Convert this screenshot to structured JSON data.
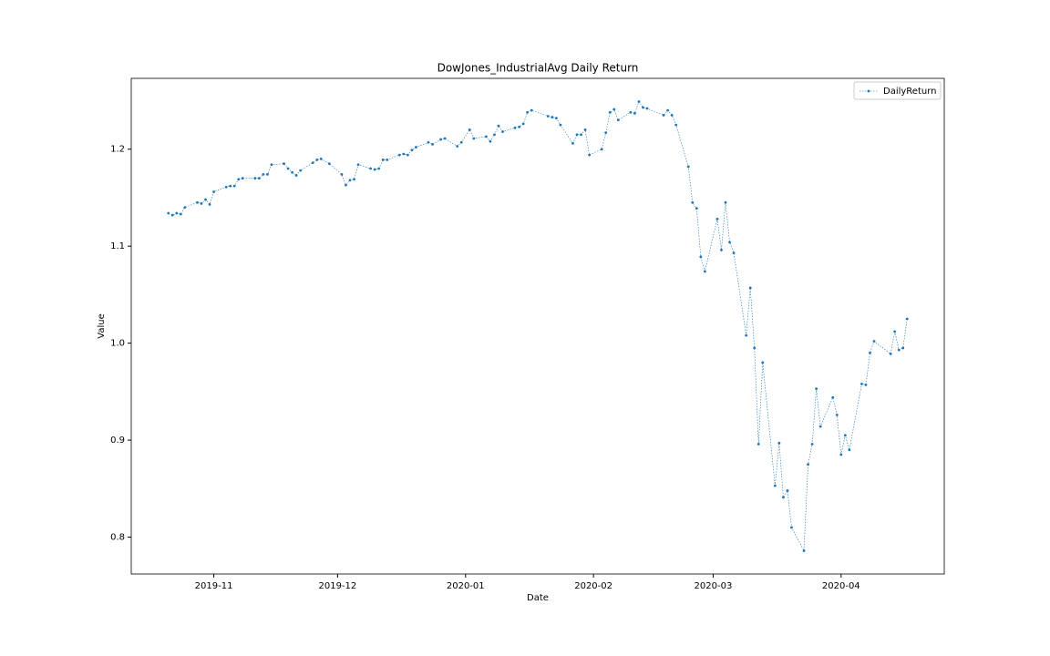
{
  "chart_data": {
    "type": "line",
    "title": "DowJones_IndustrialAvg Daily Return",
    "x_label": "Date",
    "y_label": "Value",
    "x": [
      "2019-10-21",
      "2019-10-22",
      "2019-10-23",
      "2019-10-24",
      "2019-10-25",
      "2019-10-28",
      "2019-10-29",
      "2019-10-30",
      "2019-10-31",
      "2019-11-01",
      "2019-11-04",
      "2019-11-05",
      "2019-11-06",
      "2019-11-07",
      "2019-11-08",
      "2019-11-11",
      "2019-11-12",
      "2019-11-13",
      "2019-11-14",
      "2019-11-15",
      "2019-11-18",
      "2019-11-19",
      "2019-11-20",
      "2019-11-21",
      "2019-11-22",
      "2019-11-25",
      "2019-11-26",
      "2019-11-27",
      "2019-11-29",
      "2019-12-02",
      "2019-12-03",
      "2019-12-04",
      "2019-12-05",
      "2019-12-06",
      "2019-12-09",
      "2019-12-10",
      "2019-12-11",
      "2019-12-12",
      "2019-12-13",
      "2019-12-16",
      "2019-12-17",
      "2019-12-18",
      "2019-12-19",
      "2019-12-20",
      "2019-12-23",
      "2019-12-24",
      "2019-12-26",
      "2019-12-27",
      "2019-12-30",
      "2019-12-31",
      "2020-01-02",
      "2020-01-03",
      "2020-01-06",
      "2020-01-07",
      "2020-01-08",
      "2020-01-09",
      "2020-01-10",
      "2020-01-13",
      "2020-01-14",
      "2020-01-15",
      "2020-01-16",
      "2020-01-17",
      "2020-01-21",
      "2020-01-22",
      "2020-01-23",
      "2020-01-24",
      "2020-01-27",
      "2020-01-28",
      "2020-01-29",
      "2020-01-30",
      "2020-01-31",
      "2020-02-03",
      "2020-02-04",
      "2020-02-05",
      "2020-02-06",
      "2020-02-07",
      "2020-02-10",
      "2020-02-11",
      "2020-02-12",
      "2020-02-13",
      "2020-02-14",
      "2020-02-18",
      "2020-02-19",
      "2020-02-20",
      "2020-02-21",
      "2020-02-24",
      "2020-02-25",
      "2020-02-26",
      "2020-02-27",
      "2020-02-28",
      "2020-03-02",
      "2020-03-03",
      "2020-03-04",
      "2020-03-05",
      "2020-03-06",
      "2020-03-09",
      "2020-03-10",
      "2020-03-11",
      "2020-03-12",
      "2020-03-13",
      "2020-03-16",
      "2020-03-17",
      "2020-03-18",
      "2020-03-19",
      "2020-03-20",
      "2020-03-23",
      "2020-03-24",
      "2020-03-25",
      "2020-03-26",
      "2020-03-27",
      "2020-03-30",
      "2020-03-31",
      "2020-04-01",
      "2020-04-02",
      "2020-04-03",
      "2020-04-06",
      "2020-04-07",
      "2020-04-08",
      "2020-04-09",
      "2020-04-13",
      "2020-04-14",
      "2020-04-15",
      "2020-04-16",
      "2020-04-17"
    ],
    "series": [
      {
        "name": "DailyReturn",
        "color": "#1f77b4",
        "values": [
          1.134,
          1.132,
          1.134,
          1.133,
          1.14,
          1.145,
          1.144,
          1.148,
          1.143,
          1.156,
          1.161,
          1.162,
          1.162,
          1.169,
          1.17,
          1.17,
          1.17,
          1.174,
          1.174,
          1.184,
          1.185,
          1.18,
          1.176,
          1.173,
          1.178,
          1.186,
          1.189,
          1.19,
          1.185,
          1.174,
          1.163,
          1.168,
          1.169,
          1.184,
          1.18,
          1.179,
          1.18,
          1.189,
          1.189,
          1.194,
          1.195,
          1.194,
          1.199,
          1.202,
          1.207,
          1.205,
          1.21,
          1.211,
          1.203,
          1.207,
          1.22,
          1.211,
          1.213,
          1.208,
          1.215,
          1.224,
          1.218,
          1.222,
          1.223,
          1.226,
          1.238,
          1.24,
          1.234,
          1.233,
          1.232,
          1.225,
          1.206,
          1.215,
          1.215,
          1.22,
          1.194,
          1.2,
          1.217,
          1.238,
          1.241,
          1.23,
          1.238,
          1.237,
          1.249,
          1.243,
          1.242,
          1.235,
          1.24,
          1.235,
          1.225,
          1.182,
          1.145,
          1.139,
          1.089,
          1.074,
          1.128,
          1.096,
          1.145,
          1.104,
          1.093,
          1.008,
          1.057,
          0.995,
          0.896,
          0.98,
          0.853,
          0.897,
          0.841,
          0.848,
          0.81,
          0.786,
          0.875,
          0.896,
          0.953,
          0.914,
          0.944,
          0.926,
          0.885,
          0.905,
          0.89,
          0.958,
          0.957,
          0.99,
          1.002,
          0.989,
          1.012,
          0.993,
          0.995,
          1.025
        ]
      }
    ],
    "xlim": [
      "2019-10-12",
      "2020-04-26"
    ],
    "xticks": [
      {
        "value": "2019-11-01",
        "label": "2019-11"
      },
      {
        "value": "2019-12-01",
        "label": "2019-12"
      },
      {
        "value": "2020-01-01",
        "label": "2020-01"
      },
      {
        "value": "2020-02-01",
        "label": "2020-02"
      },
      {
        "value": "2020-03-01",
        "label": "2020-03"
      },
      {
        "value": "2020-04-01",
        "label": "2020-04"
      }
    ],
    "ylim": [
      0.762,
      1.273
    ],
    "yticks": [
      0.8,
      0.9,
      {
        "value": 1,
        "label": "1.0"
      },
      1.1,
      1.2
    ],
    "legend": "upper right",
    "grid": false
  }
}
